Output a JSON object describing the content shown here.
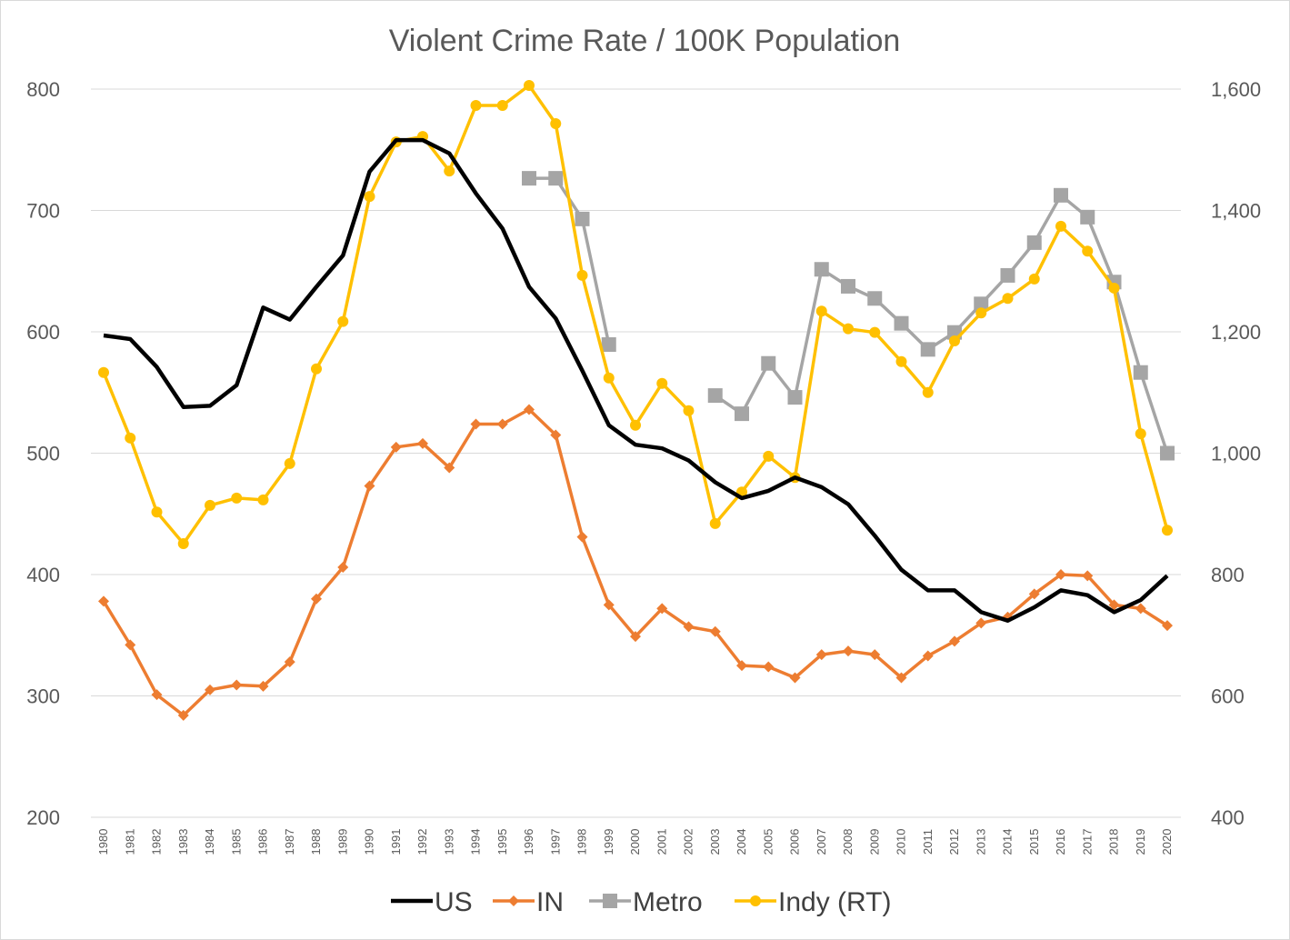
{
  "chart_data": {
    "type": "line",
    "title": "Violent Crime Rate / 100K Population",
    "x": [
      1980,
      1981,
      1982,
      1983,
      1984,
      1985,
      1986,
      1987,
      1988,
      1989,
      1990,
      1991,
      1992,
      1993,
      1994,
      1995,
      1996,
      1997,
      1998,
      1999,
      2000,
      2001,
      2002,
      2003,
      2004,
      2005,
      2006,
      2007,
      2008,
      2009,
      2010,
      2011,
      2012,
      2013,
      2014,
      2015,
      2016,
      2017,
      2018,
      2019,
      2020
    ],
    "x_tick_labels": [
      "1980",
      "1981",
      "1982",
      "1983",
      "1984",
      "1985",
      "1986",
      "1987",
      "1988",
      "1989",
      "1990",
      "1991",
      "1992",
      "1993",
      "1994",
      "1995",
      "1996",
      "1997",
      "1998",
      "1999",
      "2000",
      "2001",
      "2002",
      "2003",
      "2004",
      "2005",
      "2006",
      "2007",
      "2008",
      "2009",
      "2010",
      "2011",
      "2012",
      "2013",
      "2014",
      "2015",
      "2016",
      "2017",
      "2018",
      "2019",
      "2020"
    ],
    "y_left": {
      "lim": [
        200,
        800
      ],
      "ticks": [
        200,
        300,
        400,
        500,
        600,
        700,
        800
      ],
      "tick_labels": [
        "200",
        "300",
        "400",
        "500",
        "600",
        "700",
        "800"
      ]
    },
    "y_right": {
      "lim": [
        400,
        1600
      ],
      "ticks": [
        400,
        600,
        800,
        1000,
        1200,
        1400,
        1600
      ],
      "tick_labels": [
        "400",
        "600",
        "800",
        "1,000",
        "1,200",
        "1,400",
        "1,600"
      ]
    },
    "grid": true,
    "legend_position": "bottom",
    "series": [
      {
        "name": "US",
        "axis": "left",
        "color": "#000000",
        "marker": "none",
        "values": [
          597,
          594,
          571,
          538,
          539,
          556,
          620,
          610,
          637,
          663,
          732,
          758,
          758,
          747,
          714,
          685,
          637,
          611,
          568,
          523,
          507,
          504,
          494,
          476,
          463,
          469,
          480,
          472,
          458,
          432,
          404,
          387,
          387,
          369,
          362,
          373,
          387,
          383,
          369,
          379,
          399
        ]
      },
      {
        "name": "IN",
        "axis": "left",
        "color": "#ed7d31",
        "marker": "diamond",
        "values": [
          378,
          342,
          301,
          284,
          305,
          309,
          308,
          328,
          380,
          406,
          473,
          505,
          508,
          488,
          524,
          524,
          536,
          515,
          431,
          375,
          349,
          372,
          357,
          353,
          325,
          324,
          315,
          334,
          337,
          334,
          315,
          333,
          345,
          360,
          365,
          384,
          400,
          399,
          375,
          372,
          358
        ]
      },
      {
        "name": "Metro",
        "axis": "right",
        "color": "#a5a5a5",
        "marker": "square",
        "values": [
          null,
          null,
          null,
          null,
          null,
          null,
          null,
          null,
          null,
          null,
          null,
          null,
          null,
          null,
          null,
          null,
          1453,
          1453,
          1386,
          1179,
          null,
          null,
          null,
          1095,
          1065,
          1148,
          1092,
          1303,
          1275,
          1255,
          1214,
          1171,
          1199,
          1246,
          1293,
          1347,
          1425,
          1389,
          1282,
          1133,
          1000
        ]
      },
      {
        "name": "Indy (RT)",
        "axis": "right",
        "color": "#ffc000",
        "marker": "circle",
        "values": [
          1133,
          1025,
          903,
          851,
          914,
          926,
          923,
          983,
          1139,
          1217,
          1423,
          1513,
          1522,
          1465,
          1573,
          1573,
          1606,
          1543,
          1293,
          1124,
          1046,
          1115,
          1070,
          884,
          936,
          995,
          960,
          1234,
          1205,
          1199,
          1151,
          1100,
          1185,
          1231,
          1255,
          1287,
          1374,
          1333,
          1272,
          1032,
          873
        ]
      }
    ]
  }
}
